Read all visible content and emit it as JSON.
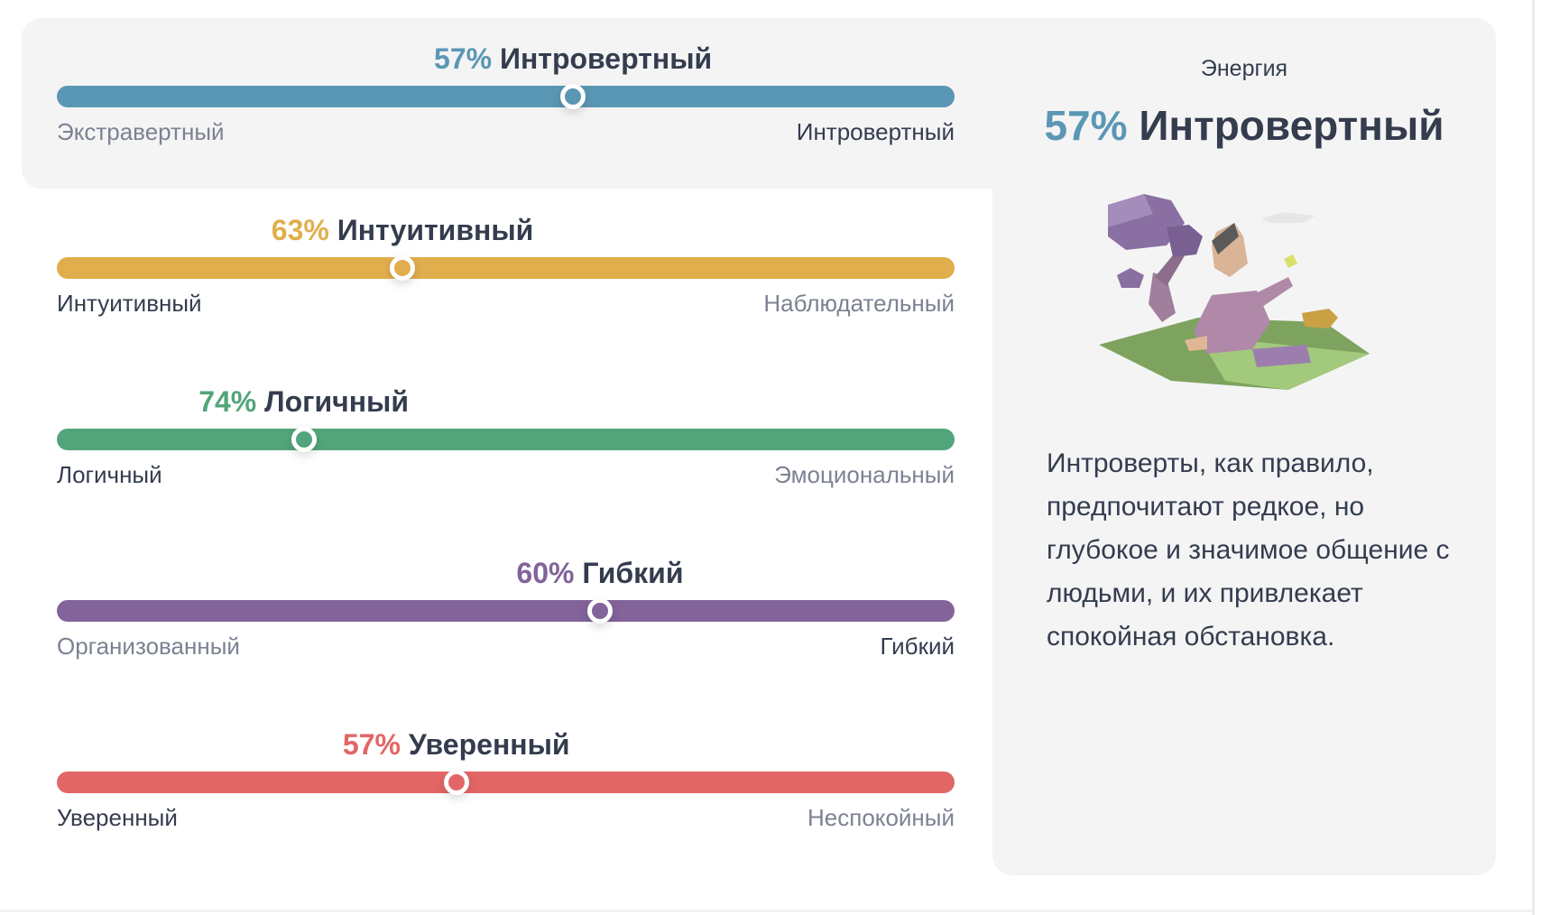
{
  "traits": [
    {
      "pct": "57%",
      "name": "Интровертный",
      "left": "Экстравертный",
      "right": "Интровертный",
      "position": 0.575,
      "dominant": "right",
      "color": "#5a97b4"
    },
    {
      "pct": "63%",
      "name": "Интуитивный",
      "left": "Интуитивный",
      "right": "Наблюдательный",
      "position": 0.385,
      "dominant": "left",
      "color": "#e0ae4c"
    },
    {
      "pct": "74%",
      "name": "Логичный",
      "left": "Логичный",
      "right": "Эмоциональный",
      "position": 0.275,
      "dominant": "left",
      "color": "#52a57a"
    },
    {
      "pct": "60%",
      "name": "Гибкий",
      "left": "Организованный",
      "right": "Гибкий",
      "position": 0.605,
      "dominant": "right",
      "color": "#82639a"
    },
    {
      "pct": "57%",
      "name": "Уверенный",
      "left": "Уверенный",
      "right": "Неспокойный",
      "position": 0.445,
      "dominant": "left",
      "color": "#e26666"
    }
  ],
  "detail": {
    "category": "Энергия",
    "pct": "57%",
    "name": "Интровертный",
    "illustration": "introvert-illustration",
    "description": "Интроверты, как правило, предпочитают редкое, но глубокое и значимое общение с людьми, и их привлекает спокойная обстановка.",
    "accent": "#5a97b4"
  }
}
